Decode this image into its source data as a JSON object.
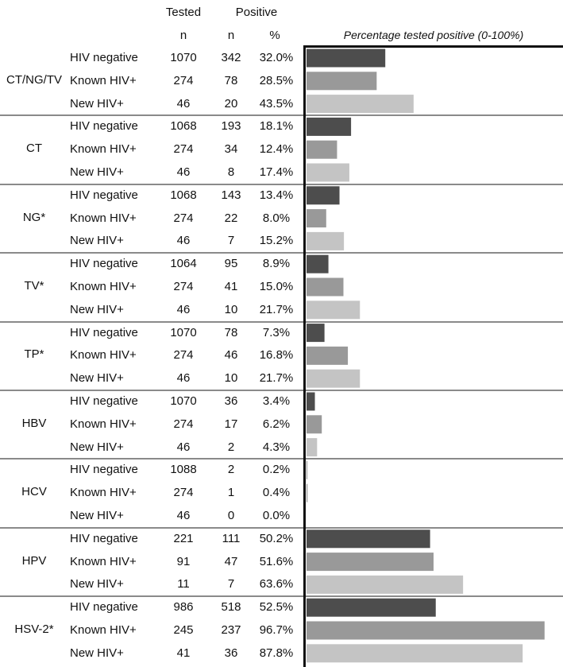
{
  "header": {
    "tested": "Tested",
    "positive": "Positive",
    "n_tested": "n",
    "n_positive": "n",
    "pct": "%"
  },
  "chart_data": {
    "type": "bar",
    "title": "Percentage tested positive (0-100%)",
    "orientation": "horizontal",
    "xlim": [
      0,
      100
    ],
    "grid": false,
    "colors": {
      "HIV negative": "#4d4d4d",
      "Known HIV+": "#999999",
      "New HIV+": "#c4c4c4"
    },
    "groups": [
      {
        "label": "CT/NG/TV",
        "rows": [
          {
            "subgroup": "HIV negative",
            "tested": "1070",
            "positive": "342",
            "pct_label": "32.0%",
            "value": 32.0
          },
          {
            "subgroup": "Known HIV+",
            "tested": "274",
            "positive": "78",
            "pct_label": "28.5%",
            "value": 28.5
          },
          {
            "subgroup": "New HIV+",
            "tested": "46",
            "positive": "20",
            "pct_label": "43.5%",
            "value": 43.5
          }
        ]
      },
      {
        "label": "CT",
        "rows": [
          {
            "subgroup": "HIV negative",
            "tested": "1068",
            "positive": "193",
            "pct_label": "18.1%",
            "value": 18.1
          },
          {
            "subgroup": "Known HIV+",
            "tested": "274",
            "positive": "34",
            "pct_label": "12.4%",
            "value": 12.4
          },
          {
            "subgroup": "New HIV+",
            "tested": "46",
            "positive": "8",
            "pct_label": "17.4%",
            "value": 17.4
          }
        ]
      },
      {
        "label": "NG*",
        "rows": [
          {
            "subgroup": "HIV negative",
            "tested": "1068",
            "positive": "143",
            "pct_label": "13.4%",
            "value": 13.4
          },
          {
            "subgroup": "Known HIV+",
            "tested": "274",
            "positive": "22",
            "pct_label": "8.0%",
            "value": 8.0
          },
          {
            "subgroup": "New HIV+",
            "tested": "46",
            "positive": "7",
            "pct_label": "15.2%",
            "value": 15.2
          }
        ]
      },
      {
        "label": "TV*",
        "rows": [
          {
            "subgroup": "HIV negative",
            "tested": "1064",
            "positive": "95",
            "pct_label": "8.9%",
            "value": 8.9
          },
          {
            "subgroup": "Known HIV+",
            "tested": "274",
            "positive": "41",
            "pct_label": "15.0%",
            "value": 15.0
          },
          {
            "subgroup": "New HIV+",
            "tested": "46",
            "positive": "10",
            "pct_label": "21.7%",
            "value": 21.7
          }
        ]
      },
      {
        "label": "TP*",
        "rows": [
          {
            "subgroup": "HIV negative",
            "tested": "1070",
            "positive": "78",
            "pct_label": "7.3%",
            "value": 7.3
          },
          {
            "subgroup": "Known HIV+",
            "tested": "274",
            "positive": "46",
            "pct_label": "16.8%",
            "value": 16.8
          },
          {
            "subgroup": "New HIV+",
            "tested": "46",
            "positive": "10",
            "pct_label": "21.7%",
            "value": 21.7
          }
        ]
      },
      {
        "label": "HBV",
        "rows": [
          {
            "subgroup": "HIV negative",
            "tested": "1070",
            "positive": "36",
            "pct_label": "3.4%",
            "value": 3.4
          },
          {
            "subgroup": "Known HIV+",
            "tested": "274",
            "positive": "17",
            "pct_label": "6.2%",
            "value": 6.2
          },
          {
            "subgroup": "New HIV+",
            "tested": "46",
            "positive": "2",
            "pct_label": "4.3%",
            "value": 4.3
          }
        ]
      },
      {
        "label": "HCV",
        "rows": [
          {
            "subgroup": "HIV negative",
            "tested": "1088",
            "positive": "2",
            "pct_label": "0.2%",
            "value": 0.2
          },
          {
            "subgroup": "Known HIV+",
            "tested": "274",
            "positive": "1",
            "pct_label": "0.4%",
            "value": 0.4
          },
          {
            "subgroup": "New HIV+",
            "tested": "46",
            "positive": "0",
            "pct_label": "0.0%",
            "value": 0.0
          }
        ]
      },
      {
        "label": "HPV",
        "rows": [
          {
            "subgroup": "HIV negative",
            "tested": "221",
            "positive": "111",
            "pct_label": "50.2%",
            "value": 50.2
          },
          {
            "subgroup": "Known HIV+",
            "tested": "91",
            "positive": "47",
            "pct_label": "51.6%",
            "value": 51.6
          },
          {
            "subgroup": "New HIV+",
            "tested": "11",
            "positive": "7",
            "pct_label": "63.6%",
            "value": 63.6
          }
        ]
      },
      {
        "label": "HSV-2*",
        "rows": [
          {
            "subgroup": "HIV negative",
            "tested": "986",
            "positive": "518",
            "pct_label": "52.5%",
            "value": 52.5
          },
          {
            "subgroup": "Known HIV+",
            "tested": "245",
            "positive": "237",
            "pct_label": "96.7%",
            "value": 96.7
          },
          {
            "subgroup": "New HIV+",
            "tested": "41",
            "positive": "36",
            "pct_label": "87.8%",
            "value": 87.8
          }
        ]
      }
    ]
  }
}
